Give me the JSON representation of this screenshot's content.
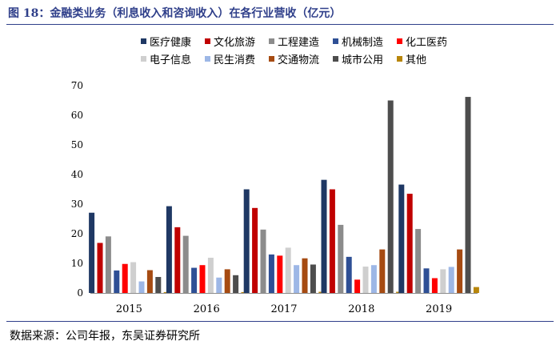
{
  "figure": {
    "title": "图 18：金融类业务（利息收入和咨询收入）在各行业营收（亿元）",
    "source": "数据来源：公司年报，东吴证券研究所"
  },
  "chart_data": {
    "type": "bar",
    "title": "图 18：金融类业务（利息收入和咨询收入）在各行业营收（亿元）",
    "xlabel": "",
    "ylabel": "",
    "ylim": [
      0,
      70
    ],
    "yticks": [
      "0",
      "10",
      "20",
      "30",
      "40",
      "50",
      "60",
      "70"
    ],
    "categories": [
      "2015",
      "2016",
      "2017",
      "2018",
      "2019"
    ],
    "legend_position": "top",
    "series": [
      {
        "name": "医疗健康",
        "color": "#1f3864",
        "values": [
          27.1,
          29.3,
          35.0,
          38.2,
          36.6
        ]
      },
      {
        "name": "文化旅游",
        "color": "#c00000",
        "values": [
          16.9,
          22.2,
          28.7,
          35.0,
          33.5
        ]
      },
      {
        "name": "工程建造",
        "color": "#8c8c8c",
        "values": [
          19.1,
          19.3,
          21.4,
          23.0,
          21.6
        ]
      },
      {
        "name": "机械制造",
        "color": "#2e4f95",
        "values": [
          7.6,
          8.5,
          13.0,
          12.2,
          8.3
        ]
      },
      {
        "name": "化工医药",
        "color": "#ff0000",
        "values": [
          9.8,
          9.4,
          12.6,
          4.5,
          5.0
        ]
      },
      {
        "name": "电子信息",
        "color": "#cfcfcf",
        "values": [
          10.4,
          11.9,
          15.3,
          8.9,
          8.0
        ]
      },
      {
        "name": "民生消费",
        "color": "#9db7e6",
        "values": [
          3.9,
          5.2,
          9.4,
          9.4,
          8.8
        ]
      },
      {
        "name": "交通物流",
        "color": "#a64b12",
        "values": [
          7.7,
          8.0,
          11.7,
          14.7,
          14.7
        ]
      },
      {
        "name": "城市公用",
        "color": "#4d4d4d",
        "values": [
          5.4,
          6.0,
          9.6,
          65.0,
          66.2
        ]
      },
      {
        "name": "其他",
        "color": "#b8860b",
        "values": [
          0.3,
          0.3,
          0.4,
          0.4,
          2.0
        ]
      }
    ]
  }
}
